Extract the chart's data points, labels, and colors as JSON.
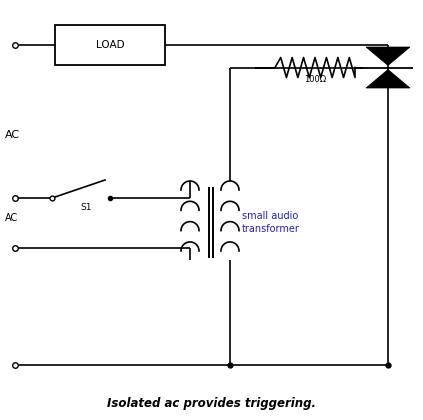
{
  "title": "Isolated ac provides triggering.",
  "background_color": "#ffffff",
  "line_color": "#000000",
  "blue_text_color": "#2222cc",
  "component_labels": {
    "load": "LOAD",
    "resistor": "100Ω",
    "switch": "S1",
    "transformer": "small audio\ntransformer",
    "ac_main": "AC",
    "ac_control": "AC"
  },
  "figsize": [
    4.23,
    4.2
  ],
  "dpi": 100
}
